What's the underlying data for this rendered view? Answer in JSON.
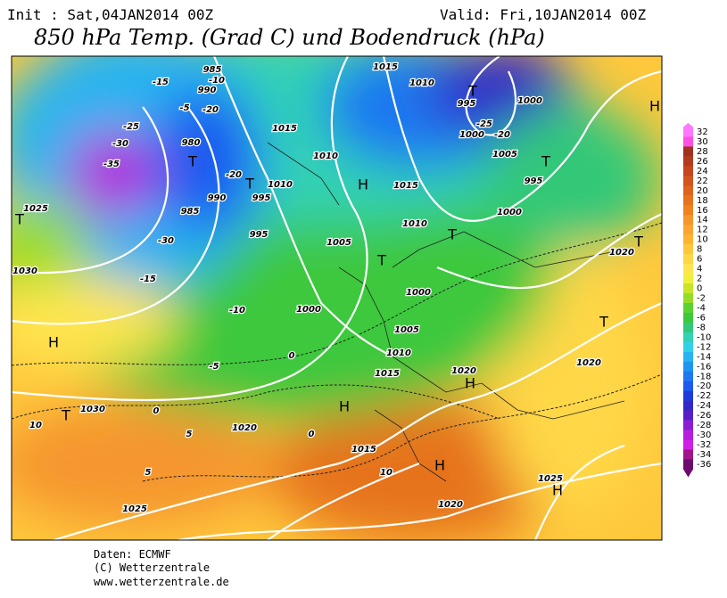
{
  "header": {
    "init": "Init : Sat,04JAN2014 00Z",
    "valid": "Valid: Fri,10JAN2014 00Z",
    "title": "850 hPa Temp. (Grad C) und Bodendruck (hPa)"
  },
  "footer": {
    "line1": "Daten: ECMWF",
    "line2": "(C) Wetterzentrale",
    "line3": "www.wetterzentrale.de"
  },
  "colorbar": {
    "labels": [
      32,
      30,
      28,
      26,
      24,
      22,
      20,
      18,
      16,
      14,
      12,
      10,
      8,
      6,
      4,
      2,
      0,
      -2,
      -4,
      -6,
      -8,
      -10,
      -12,
      -14,
      -16,
      -18,
      -20,
      -22,
      -24,
      -26,
      -28,
      -30,
      -32,
      -34,
      -36
    ],
    "colors": [
      "#ff78ff",
      "#ff50e6",
      "#a0321e",
      "#b43c1e",
      "#c8461e",
      "#d2551e",
      "#dc641e",
      "#e6731e",
      "#f0821e",
      "#f5962d",
      "#faa532",
      "#ffb432",
      "#ffc83c",
      "#ffd746",
      "#ffe650",
      "#f0f03c",
      "#c8e628",
      "#96dc28",
      "#5ad232",
      "#3cc83c",
      "#32c878",
      "#32d2b4",
      "#32d2e6",
      "#28b4f0",
      "#1e96f0",
      "#1e78f0",
      "#1e5af0",
      "#1e3cdc",
      "#3228c8",
      "#5a1ec8",
      "#8c1ed2",
      "#b41edc",
      "#d21ee6",
      "#a0148c",
      "#6e0a6e"
    ]
  },
  "map_labels": [
    "-15",
    "985",
    "-10",
    "990",
    "-5",
    "-20",
    "-25",
    "-30",
    "-35",
    "980",
    "T",
    "1025",
    "T",
    "-30",
    "985",
    "990",
    "995",
    "-20",
    "1030",
    "-15",
    "-10",
    "1000",
    "H",
    "-5",
    "0",
    "T",
    "10",
    "1030",
    "0",
    "5",
    "1020",
    "0",
    "H",
    "1015",
    "10",
    "H",
    "5",
    "1025",
    "1020",
    "H",
    "1020",
    "1015",
    "1010",
    "1005",
    "1000",
    "T",
    "1025",
    "H",
    "1020",
    "T",
    "1020",
    "T",
    "H",
    "1015",
    "1010",
    "1005",
    "T",
    "1000",
    "995",
    "T",
    "1005",
    "1000",
    "995",
    "T",
    "-25",
    "1000",
    "-20",
    "1010",
    "1015",
    "H",
    "1015",
    "1010",
    "1010",
    "995",
    "T"
  ]
}
